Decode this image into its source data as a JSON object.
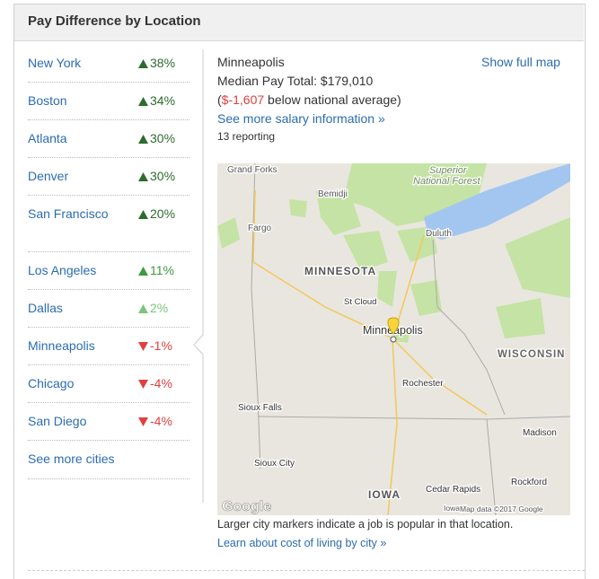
{
  "header": {
    "title": "Pay Difference by Location"
  },
  "cities": [
    {
      "name": "New York",
      "change": "38%",
      "direction": "up",
      "color": "#2e6b2e"
    },
    {
      "name": "Boston",
      "change": "34%",
      "direction": "up",
      "color": "#2e6b2e"
    },
    {
      "name": "Atlanta",
      "change": "30%",
      "direction": "up",
      "color": "#2e6b2e"
    },
    {
      "name": "Denver",
      "change": "30%",
      "direction": "up",
      "color": "#2e6b2e"
    },
    {
      "name": "San Francisco",
      "change": "20%",
      "direction": "up",
      "color": "#2e6b2e"
    },
    {
      "name": "Los Angeles",
      "change": "11%",
      "direction": "up",
      "color": "#3e9a3e"
    },
    {
      "name": "Dallas",
      "change": "2%",
      "direction": "up",
      "color": "#7cc47c"
    },
    {
      "name": "Minneapolis",
      "change": "-1%",
      "direction": "down",
      "color": "#e04040"
    },
    {
      "name": "Chicago",
      "change": "-4%",
      "direction": "down",
      "color": "#e04040"
    },
    {
      "name": "San Diego",
      "change": "-4%",
      "direction": "down",
      "color": "#e04040"
    }
  ],
  "see_more_cities": "See more cities",
  "detail": {
    "city": "Minneapolis",
    "median": "Median Pay Total: $179,010",
    "difference": [
      "(",
      "$-1,607",
      " below national average)"
    ],
    "salary_link": "See more salary information »",
    "reporting": "13 reporting",
    "show_map": "Show full map"
  },
  "map": {
    "labels": [
      "Grand Forks",
      "Superior",
      "National Forest",
      "Bemidji",
      "Fargo",
      "Duluth",
      "MINNESOTA",
      "St Cloud",
      "Minneapolis",
      "WISCONSIN",
      "Rochester",
      "Sioux Falls",
      "Madison",
      "Sioux City",
      "IOWA",
      "Cedar Rapids",
      "Rockford",
      "Iowa C",
      "Map data ©2017 Google"
    ],
    "logo": "Google"
  },
  "footer": {
    "note": "Larger city markers indicate a job is popular in that location.",
    "link": "Learn about cost of living by city »"
  }
}
